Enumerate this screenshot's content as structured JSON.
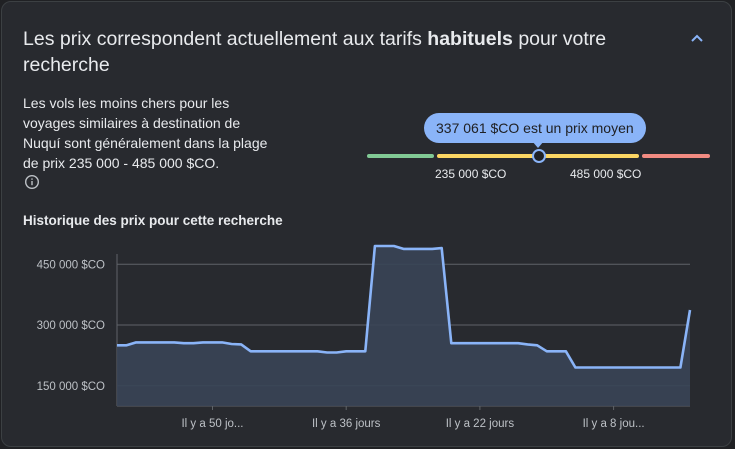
{
  "header": {
    "title_part1": "Les prix correspondent actuellement aux tarifs ",
    "title_bold": "habituels",
    "title_part2": " pour votre recherche",
    "collapse_icon": "chevron-up-icon"
  },
  "summary": {
    "description": "Les vols les moins chers pour les voyages similaires à destination de Nuquí sont généralement dans la plage de prix 235 000 - 485 000 $CO.",
    "info_icon": "info-icon"
  },
  "price_range": {
    "current_label": "337 061 $CO est un prix moyen",
    "low_label": "235 000 $CO",
    "high_label": "485 000 $CO",
    "low_color": "#81c995",
    "mid_color": "#fdd663",
    "high_color": "#f28b82",
    "accent_color": "#8ab4f8"
  },
  "history": {
    "heading": "Historique des prix pour cette recherche"
  },
  "chart_data": {
    "type": "area",
    "title": "Historique des prix pour cette recherche",
    "xlabel": "",
    "ylabel": "",
    "x_tick_labels": [
      "Il y a 50 jo...",
      "Il y a 36 jours",
      "Il y a 22 jours",
      "Il y a 8 jou..."
    ],
    "y_tick_labels": [
      "450 000 $CO",
      "300 000 $CO",
      "150 000 $CO"
    ],
    "y_ticks": [
      450000,
      300000,
      150000
    ],
    "ylim": [
      100000,
      500000
    ],
    "x_days_ago": [
      60,
      59,
      58,
      57,
      56,
      55,
      54,
      53,
      52,
      51,
      50,
      49,
      48,
      47,
      46,
      45,
      44,
      43,
      42,
      41,
      40,
      39,
      38,
      37,
      36,
      35,
      34,
      33,
      32,
      31,
      30,
      29,
      28,
      27,
      26,
      25,
      24,
      23,
      22,
      21,
      20,
      19,
      18,
      17,
      16,
      15,
      14,
      13,
      12,
      11,
      10,
      9,
      8,
      7,
      6,
      5,
      4,
      3,
      2,
      1,
      0
    ],
    "values": [
      250000,
      250000,
      257000,
      257000,
      257000,
      257000,
      257000,
      255000,
      255000,
      257000,
      257000,
      257000,
      253000,
      252000,
      235000,
      235000,
      235000,
      235000,
      235000,
      235000,
      235000,
      235000,
      232000,
      232000,
      235000,
      235000,
      235000,
      495000,
      495000,
      495000,
      488000,
      488000,
      488000,
      488000,
      490000,
      255000,
      255000,
      255000,
      255000,
      255000,
      255000,
      255000,
      255000,
      252000,
      250000,
      235000,
      235000,
      235000,
      195000,
      195000,
      195000,
      195000,
      195000,
      195000,
      195000,
      195000,
      195000,
      195000,
      195000,
      195000,
      337061
    ],
    "line_color": "#8ab4f8",
    "fill_color": "#394457",
    "grid": true
  }
}
